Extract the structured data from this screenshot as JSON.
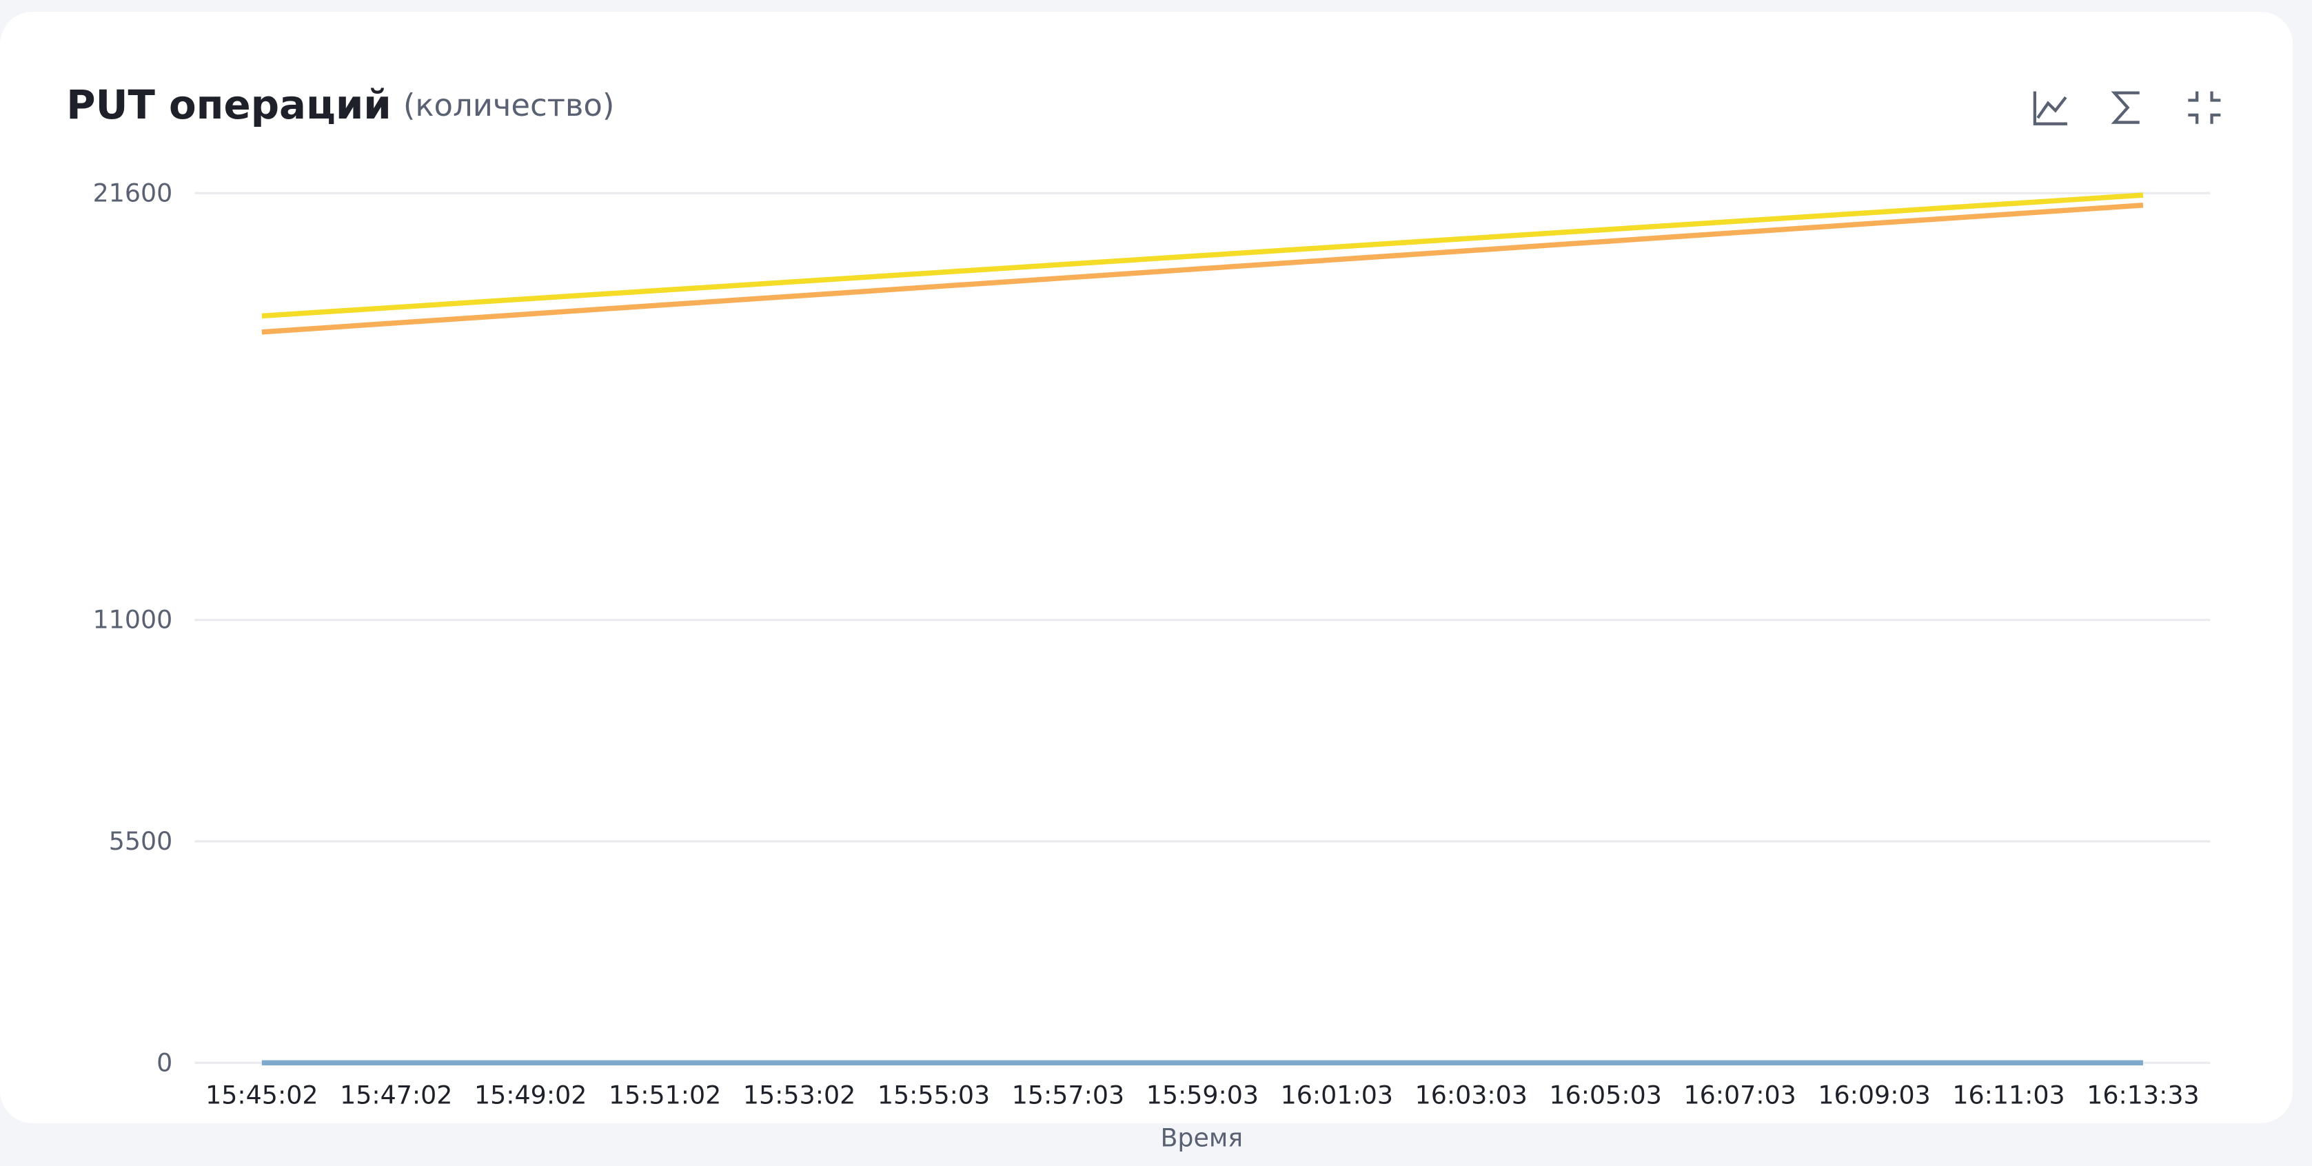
{
  "chart_data": {
    "type": "line",
    "title": "PUT операций",
    "subtitle": "(количество)",
    "x_label": "Время",
    "categories": [
      "15:45:02",
      "15:47:02",
      "15:49:02",
      "15:51:02",
      "15:53:02",
      "15:55:03",
      "15:57:03",
      "15:59:03",
      "16:01:03",
      "16:03:03",
      "16:05:03",
      "16:07:03",
      "16:09:03",
      "16:11:03",
      "16:13:33"
    ],
    "series": [
      {
        "color": "#f5dc26",
        "values": [
          18550,
          18764,
          18979,
          19193,
          19407,
          19621,
          19836,
          20050,
          20264,
          20479,
          20693,
          20907,
          21121,
          21336,
          21550
        ]
      },
      {
        "color": "#f8ad57",
        "values": [
          18150,
          18375,
          18600,
          18825,
          19050,
          19275,
          19500,
          19725,
          19950,
          20175,
          20400,
          20625,
          20850,
          21075,
          21300
        ]
      },
      {
        "color": "#7fa9cc",
        "values": [
          0,
          0,
          0,
          0,
          0,
          0,
          0,
          0,
          0,
          0,
          0,
          0,
          0,
          0,
          0
        ]
      }
    ],
    "ylim": [
      0,
      21600
    ],
    "yticks": [
      0,
      5500,
      11000,
      21600
    ],
    "grid": true
  }
}
